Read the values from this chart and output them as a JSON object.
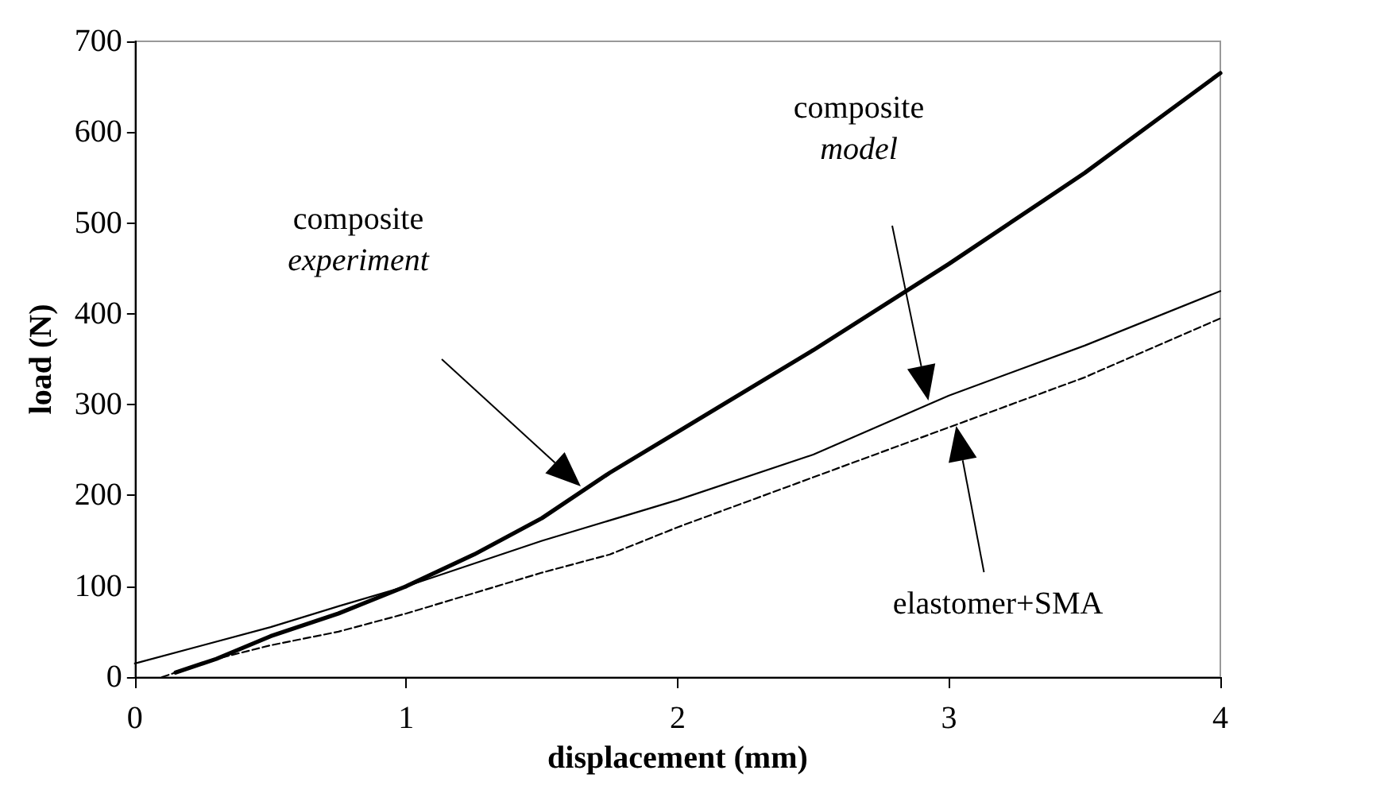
{
  "chart_data": {
    "type": "line",
    "xlabel": "displacement (mm)",
    "ylabel": "load (N)",
    "xlim": [
      0,
      4
    ],
    "xticks": [
      0,
      1,
      2,
      3,
      4
    ],
    "ylim": [
      0,
      700
    ],
    "yticks": [
      0,
      100,
      200,
      300,
      400,
      500,
      600,
      700
    ],
    "grid": false,
    "marker": "none",
    "series": [
      {
        "color": "#000000",
        "line_style": "solid",
        "x": [
          0.15,
          0.3,
          0.5,
          0.75,
          1,
          1.25,
          1.5,
          1.75,
          2,
          2.5,
          3,
          3.5,
          4
        ],
        "values": [
          5,
          20,
          45,
          70,
          100,
          135,
          175,
          225,
          270,
          360,
          455,
          555,
          665
        ]
      },
      {
        "color": "#000000",
        "line_style": "solid",
        "x": [
          0,
          0.25,
          0.5,
          0.75,
          1,
          1.5,
          2,
          2.5,
          3,
          3.5,
          4
        ],
        "values": [
          15,
          35,
          55,
          78,
          100,
          150,
          195,
          245,
          310,
          365,
          425
        ]
      },
      {
        "color": "#000000",
        "line_style": "dashed",
        "x": [
          0.1,
          0.3,
          0.5,
          0.75,
          1,
          1.5,
          1.75,
          2,
          2.5,
          3,
          3.5,
          4
        ],
        "values": [
          0,
          20,
          35,
          50,
          70,
          115,
          135,
          165,
          220,
          275,
          330,
          395
        ]
      }
    ],
    "annotations": [
      "composite\nexperiment",
      "composite\nmodel",
      "elastomer+SMA"
    ]
  }
}
